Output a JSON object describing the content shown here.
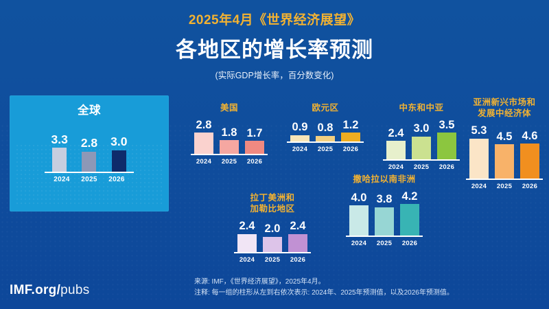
{
  "header": {
    "kicker": "2025年4月《世界经济展望》",
    "title": "各地区的增长率预测",
    "subtitle": "(实际GDP增长率，百分数变化)"
  },
  "colors": {
    "background": "#0F4F9E",
    "panel_blue": "#189CD8",
    "accent_gold": "#F2B232",
    "text_white": "#FFFFFF"
  },
  "chart_data": [
    {
      "id": "global",
      "type": "bar",
      "title_lines": [
        "全球"
      ],
      "title_color": "#FFFFFF",
      "categories": [
        "2024",
        "2025",
        "2026"
      ],
      "values": [
        3.3,
        2.8,
        3.0
      ],
      "bar_colors": [
        "#C7CEDF",
        "#8D98B7",
        "#0E2B6B"
      ]
    },
    {
      "id": "us",
      "type": "bar",
      "title_lines": [
        "美国"
      ],
      "title_color": "#F2B232",
      "categories": [
        "2024",
        "2025",
        "2026"
      ],
      "values": [
        2.8,
        1.8,
        1.7
      ],
      "bar_colors": [
        "#FAD2CE",
        "#F5A7A1",
        "#EF8981"
      ]
    },
    {
      "id": "euro",
      "type": "bar",
      "title_lines": [
        "欧元区"
      ],
      "title_color": "#F2B232",
      "categories": [
        "2024",
        "2025",
        "2026"
      ],
      "values": [
        0.9,
        0.8,
        1.2
      ],
      "bar_colors": [
        "#F8E5B8",
        "#F3CF80",
        "#EFAD21"
      ]
    },
    {
      "id": "meca",
      "type": "bar",
      "title_lines": [
        "中东和中亚"
      ],
      "title_color": "#F2B232",
      "categories": [
        "2024",
        "2025",
        "2026"
      ],
      "values": [
        2.4,
        3.0,
        3.5
      ],
      "bar_colors": [
        "#E7F0CC",
        "#CBE190",
        "#8CC63F"
      ]
    },
    {
      "id": "asia",
      "type": "bar",
      "title_lines": [
        "亚洲新兴市场和",
        "发展中经济体"
      ],
      "title_color": "#F2B232",
      "categories": [
        "2024",
        "2025",
        "2026"
      ],
      "values": [
        5.3,
        4.5,
        4.6
      ],
      "bar_colors": [
        "#FBE5C7",
        "#F8B269",
        "#F18F1F"
      ]
    },
    {
      "id": "latam",
      "type": "bar",
      "title_lines": [
        "拉丁美洲和",
        "加勒比地区"
      ],
      "title_color": "#F2B232",
      "categories": [
        "2024",
        "2025",
        "2026"
      ],
      "values": [
        2.4,
        2.0,
        2.4
      ],
      "bar_colors": [
        "#F1E5F5",
        "#DDC4E9",
        "#C191D3"
      ]
    },
    {
      "id": "ssa",
      "type": "bar",
      "title_lines": [
        "撒哈拉以南非洲"
      ],
      "title_color": "#F2B232",
      "categories": [
        "2024",
        "2025",
        "2026"
      ],
      "values": [
        4.0,
        3.8,
        4.2
      ],
      "bar_colors": [
        "#C9E9E7",
        "#97D6D4",
        "#38B4B4"
      ]
    }
  ],
  "footer": {
    "source": "来源: IMF，《世界经济展望》，2025年4月。",
    "note": "注释: 每一组的柱形从左到右依次表示: 2024年、2025年预测值，以及2026年预测值。",
    "logo_bold": "IMF.org/",
    "logo_light": "pubs"
  }
}
